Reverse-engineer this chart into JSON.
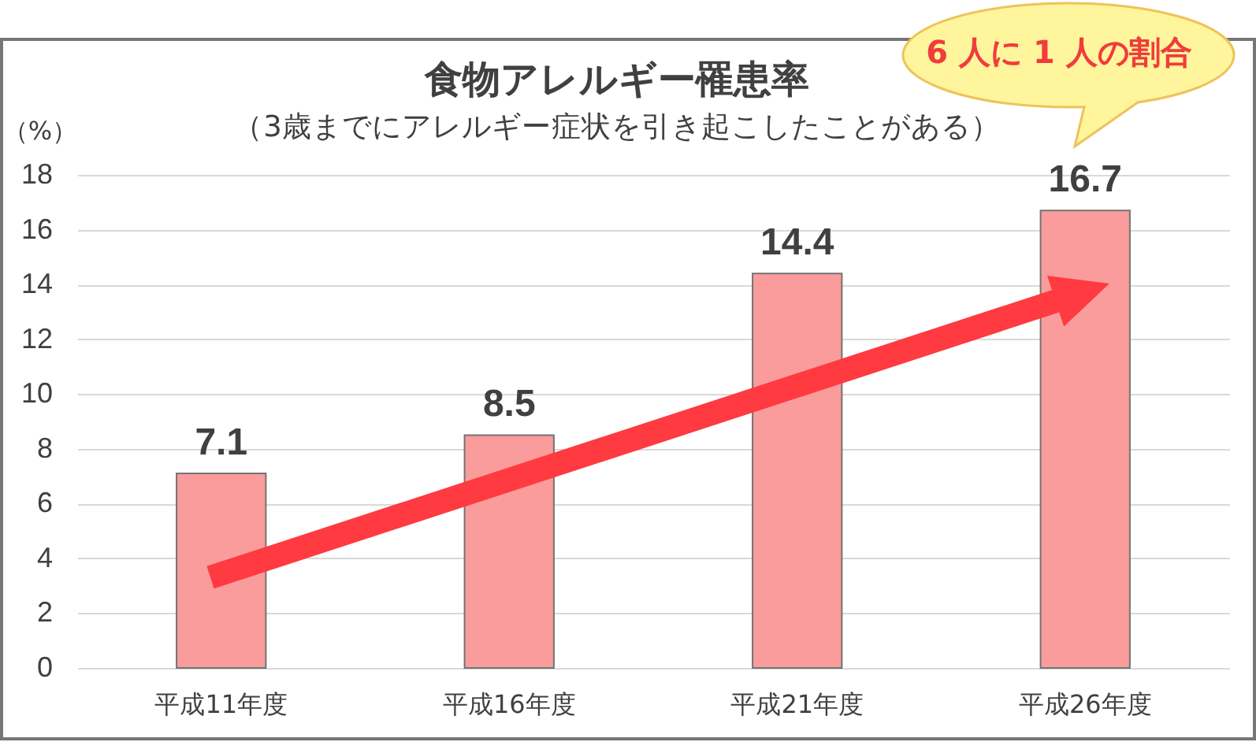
{
  "chart_data": {
    "type": "bar",
    "title": "食物アレルギー罹患率",
    "subtitle": "（3歳までにアレルギー症状を引き起こしたことがある）",
    "ylabel": "（%）",
    "categories": [
      "平成11年度",
      "平成16年度",
      "平成21年度",
      "平成26年度"
    ],
    "values": [
      7.1,
      8.5,
      14.4,
      16.7
    ],
    "color": "#fb9c9c",
    "ylim": [
      0,
      18
    ],
    "yticks": [
      0,
      2,
      4,
      6,
      8,
      10,
      12,
      14,
      16,
      18
    ],
    "grid": "y",
    "data_labels": true,
    "annotations": [
      "6 人に 1 人の割合"
    ]
  }
}
